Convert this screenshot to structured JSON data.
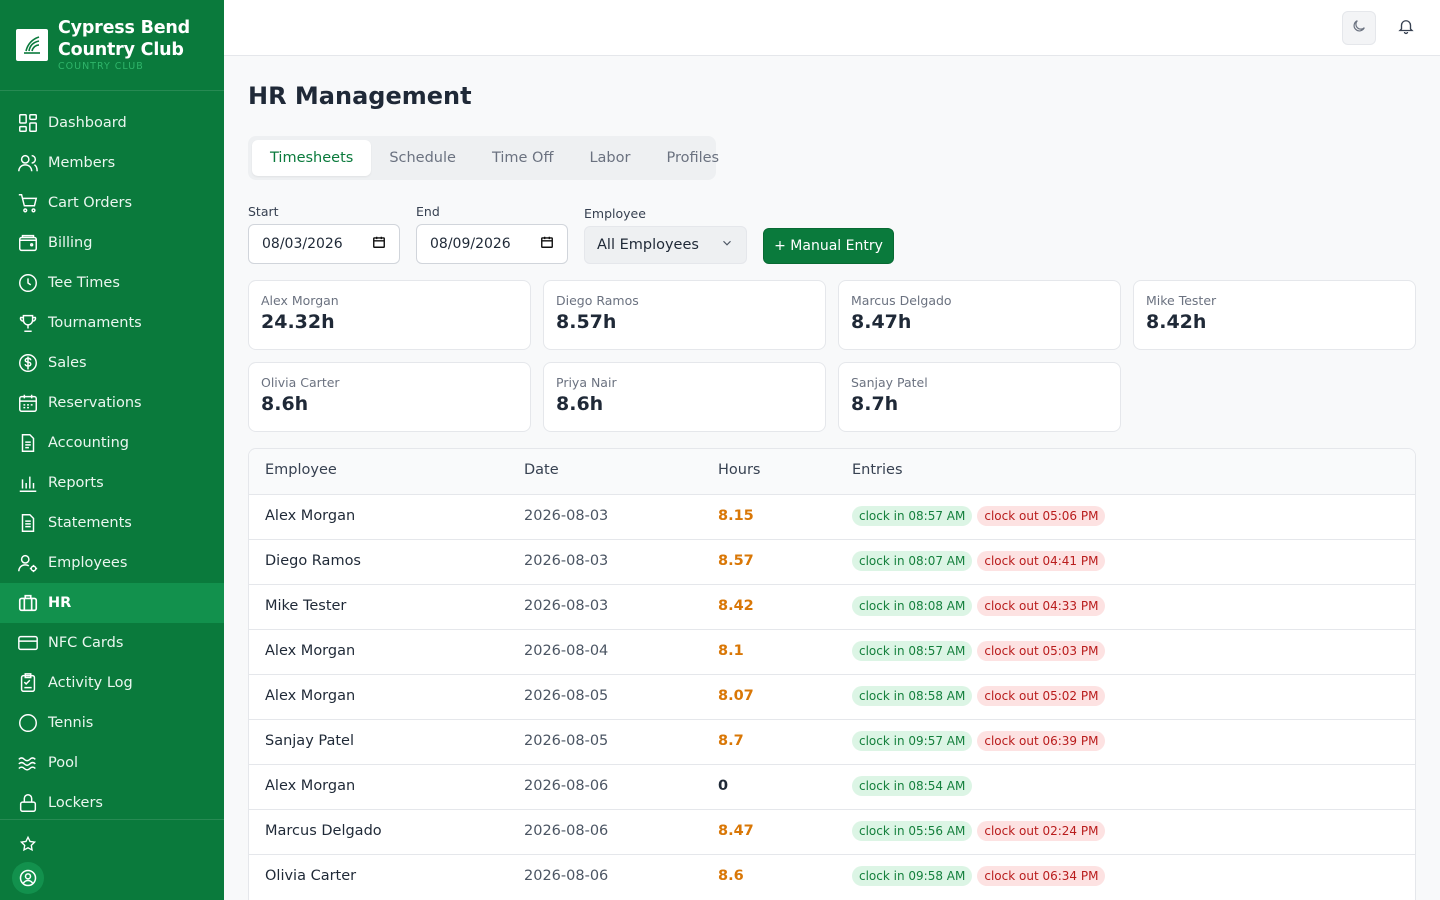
{
  "brand": {
    "name_line1": "Cypress Bend",
    "name_line2": "Country Club",
    "subtitle": "COUNTRY CLUB"
  },
  "sidebar": {
    "items": [
      {
        "label": "Dashboard",
        "icon": "dashboard-icon"
      },
      {
        "label": "Members",
        "icon": "members-icon"
      },
      {
        "label": "Cart Orders",
        "icon": "cart-icon"
      },
      {
        "label": "Billing",
        "icon": "wallet-icon"
      },
      {
        "label": "Tee Times",
        "icon": "clock-icon"
      },
      {
        "label": "Tournaments",
        "icon": "trophy-icon"
      },
      {
        "label": "Sales",
        "icon": "dollar-icon"
      },
      {
        "label": "Reservations",
        "icon": "calendar-icon"
      },
      {
        "label": "Accounting",
        "icon": "document-icon"
      },
      {
        "label": "Reports",
        "icon": "bar-chart-icon"
      },
      {
        "label": "Statements",
        "icon": "statement-icon"
      },
      {
        "label": "Employees",
        "icon": "user-gear-icon"
      },
      {
        "label": "HR",
        "icon": "briefcase-icon"
      },
      {
        "label": "NFC Cards",
        "icon": "card-icon"
      },
      {
        "label": "Activity Log",
        "icon": "clipboard-icon"
      },
      {
        "label": "Tennis",
        "icon": "tennis-ball-icon"
      },
      {
        "label": "Pool",
        "icon": "waves-icon"
      },
      {
        "label": "Lockers",
        "icon": "lock-icon"
      }
    ],
    "active": "HR"
  },
  "page": {
    "title": "HR Management"
  },
  "tabs": {
    "items": [
      "Timesheets",
      "Schedule",
      "Time Off",
      "Labor",
      "Profiles"
    ],
    "active": "Timesheets"
  },
  "filters": {
    "start_label": "Start",
    "start_value": "08/03/2026",
    "end_label": "End",
    "end_value": "08/09/2026",
    "employee_label": "Employee",
    "employee_value": "All Employees",
    "manual_entry_label": "+ Manual Entry"
  },
  "summary": [
    {
      "name": "Alex Morgan",
      "hours": "24.32h"
    },
    {
      "name": "Diego Ramos",
      "hours": "8.57h"
    },
    {
      "name": "Marcus Delgado",
      "hours": "8.47h"
    },
    {
      "name": "Mike Tester",
      "hours": "8.42h"
    },
    {
      "name": "Olivia Carter",
      "hours": "8.6h"
    },
    {
      "name": "Priya Nair",
      "hours": "8.6h"
    },
    {
      "name": "Sanjay Patel",
      "hours": "8.7h"
    }
  ],
  "table": {
    "headers": [
      "Employee",
      "Date",
      "Hours",
      "Entries"
    ],
    "rows": [
      {
        "employee": "Alex Morgan",
        "date": "2026-08-03",
        "hours": "8.15",
        "clock_in": "clock in 08:57 AM",
        "clock_out": "clock out 05:06 PM"
      },
      {
        "employee": "Diego Ramos",
        "date": "2026-08-03",
        "hours": "8.57",
        "clock_in": "clock in 08:07 AM",
        "clock_out": "clock out 04:41 PM"
      },
      {
        "employee": "Mike Tester",
        "date": "2026-08-03",
        "hours": "8.42",
        "clock_in": "clock in 08:08 AM",
        "clock_out": "clock out 04:33 PM"
      },
      {
        "employee": "Alex Morgan",
        "date": "2026-08-04",
        "hours": "8.1",
        "clock_in": "clock in 08:57 AM",
        "clock_out": "clock out 05:03 PM"
      },
      {
        "employee": "Alex Morgan",
        "date": "2026-08-05",
        "hours": "8.07",
        "clock_in": "clock in 08:58 AM",
        "clock_out": "clock out 05:02 PM"
      },
      {
        "employee": "Sanjay Patel",
        "date": "2026-08-05",
        "hours": "8.7",
        "clock_in": "clock in 09:57 AM",
        "clock_out": "clock out 06:39 PM"
      },
      {
        "employee": "Alex Morgan",
        "date": "2026-08-06",
        "hours": "0",
        "clock_in": "clock in 08:54 AM",
        "clock_out": ""
      },
      {
        "employee": "Marcus Delgado",
        "date": "2026-08-06",
        "hours": "8.47",
        "clock_in": "clock in 05:56 AM",
        "clock_out": "clock out 02:24 PM"
      },
      {
        "employee": "Olivia Carter",
        "date": "2026-08-06",
        "hours": "8.6",
        "clock_in": "clock in 09:58 AM",
        "clock_out": "clock out 06:34 PM"
      }
    ]
  },
  "colors": {
    "brand_green": "#0a7a3c",
    "active_nav": "#12914d",
    "hours_orange": "#d97706",
    "clock_in_bg": "#dcf5e5",
    "clock_out_bg": "#fde2e2"
  }
}
